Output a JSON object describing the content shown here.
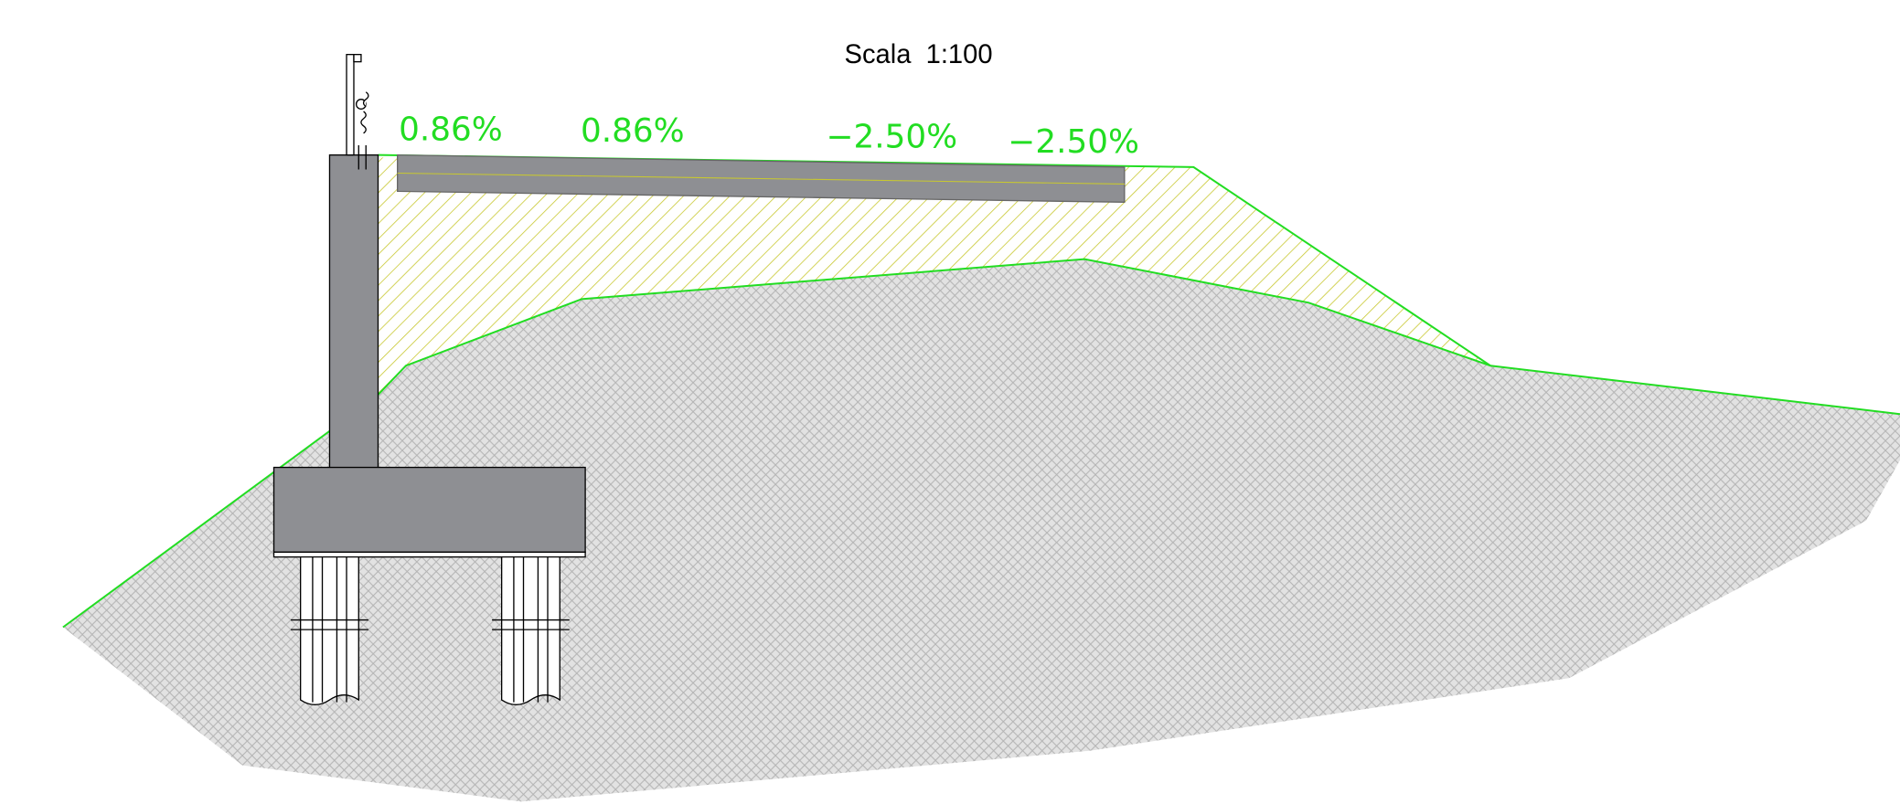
{
  "header": {
    "title": "Scala  1:100"
  },
  "slopes": [
    "0.86%",
    "0.86%",
    "−2.50%",
    "−2.50%"
  ]
}
